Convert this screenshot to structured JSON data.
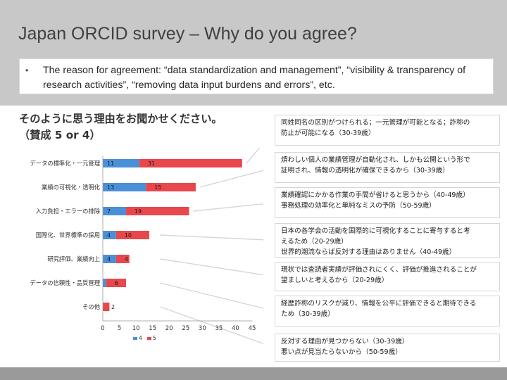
{
  "slide": {
    "title": "Japan ORCID survey – Why do you agree?",
    "bullet_marker": "•",
    "bullet_text": "The reason for agreement: “data standardization and management”, “visibility & transparency of research activities”, “removing data input burdens and errors”, etc."
  },
  "chart_title_lines": [
    "そのように思う理由をお聞かせください。",
    "（賛成 5 or 4）"
  ],
  "colors": {
    "series_4": "#4a90d9",
    "series_5": "#e8474c",
    "header_bg": "#c8c8c8",
    "footer_bg": "#9a9a9a"
  },
  "chart_data": {
    "type": "bar",
    "orientation": "horizontal",
    "stacked": true,
    "categories": [
      "データの標準化・一元管理",
      "業績の可視化・透明化",
      "入力負担・エラーの排除",
      "国際化、世界標準の採用",
      "研究評価、業績向上",
      "データの信頼性・品質管理",
      "その他"
    ],
    "series": [
      {
        "name": "4",
        "values": [
          11,
          13,
          7,
          4,
          4,
          1,
          0
        ]
      },
      {
        "name": "5",
        "values": [
          31,
          15,
          19,
          10,
          4,
          6,
          2
        ]
      }
    ],
    "value_labels": [
      [
        "11",
        "31"
      ],
      [
        "13",
        "15"
      ],
      [
        "7",
        "19"
      ],
      [
        "4",
        "10"
      ],
      [
        "4",
        "4"
      ],
      [
        "1",
        "6"
      ],
      [
        "",
        "2"
      ]
    ],
    "xlim": [
      0,
      45
    ],
    "xticks": [
      0,
      5,
      10,
      15,
      20,
      25,
      30,
      35,
      40,
      45
    ],
    "legend": "bottom",
    "grid": false
  },
  "comments": [
    {
      "lines": [
        "同姓同名の区別がつけられる；一元管理が可能となる；詐称の",
        "防止が可能になる（30-39歳）"
      ]
    },
    {
      "lines": [
        "煩わしい個人の業績管理が自動化され、しかも公開という形で",
        "証明され、情報の透明化が確保できるから（30-39歳）"
      ]
    },
    {
      "lines": [
        "業績確認にかかる作業の手間が省けると思うから（40-49歳）",
        "事務処理の効率化と単純なミスの予防（50-59歳）"
      ]
    },
    {
      "lines": [
        "日本の各学会の活動を国際的に可視化することに寄与すると考",
        "えるため（20-29歳）",
        "世界的潮流ならば反対する理由はありません（40-49歳）"
      ]
    },
    {
      "lines": [
        "現状では査読者実績が評価されにくく、評価が推進されることが",
        "望ましいと考えるから（20-29歳）"
      ]
    },
    {
      "lines": [
        "経歴詐称のリスクが減り、情報を公平に評価できると期待できる",
        "ため（30-39歳）"
      ]
    },
    {
      "lines": [
        "反対する理由が見つからない（30-39歳）",
        "悪い点が見当たらないから（50-59歳）"
      ]
    }
  ]
}
